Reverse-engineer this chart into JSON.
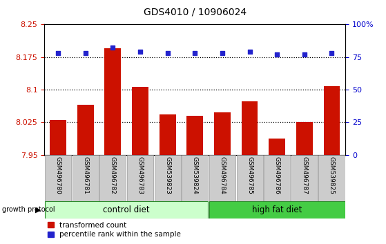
{
  "title": "GDS4010 / 10906024",
  "samples": [
    "GSM496780",
    "GSM496781",
    "GSM496782",
    "GSM496783",
    "GSM539823",
    "GSM539824",
    "GSM496784",
    "GSM496785",
    "GSM496786",
    "GSM496787",
    "GSM539825"
  ],
  "bar_values": [
    8.03,
    8.065,
    8.195,
    8.107,
    8.043,
    8.04,
    8.048,
    8.073,
    7.987,
    8.025,
    8.108
  ],
  "percentile_values": [
    78,
    78,
    82,
    79,
    78,
    78,
    78,
    79,
    77,
    77,
    78
  ],
  "ylim_left": [
    7.95,
    8.25
  ],
  "ylim_right": [
    0,
    100
  ],
  "yticks_left": [
    7.95,
    8.025,
    8.1,
    8.175,
    8.25
  ],
  "ytick_labels_left": [
    "7.95",
    "8.025",
    "8.1",
    "8.175",
    "8.25"
  ],
  "yticks_right": [
    0,
    25,
    50,
    75,
    100
  ],
  "ytick_labels_right": [
    "0",
    "25",
    "50",
    "75",
    "100%"
  ],
  "bar_color": "#cc1100",
  "dot_color": "#2222cc",
  "bar_bottom": 7.95,
  "ctrl_samples": 6,
  "hfd_samples": 5,
  "group_ctrl_color_light": "#ccffcc",
  "group_ctrl_color_dark": "#44bb44",
  "group_hfd_color": "#44cc44",
  "group_border_color": "#228822",
  "group_labels": [
    "control diet",
    "high fat diet"
  ],
  "legend_items": [
    {
      "color": "#cc1100",
      "label": "transformed count"
    },
    {
      "color": "#2222cc",
      "label": "percentile rank within the sample"
    }
  ],
  "tick_color_left": "#cc1100",
  "tick_color_right": "#0000cc",
  "xlabel_bg": "#cccccc",
  "xlabel_border": "#999999",
  "dotted_lines": [
    8.025,
    8.1,
    8.175
  ],
  "growth_protocol_label": "growth protocol"
}
